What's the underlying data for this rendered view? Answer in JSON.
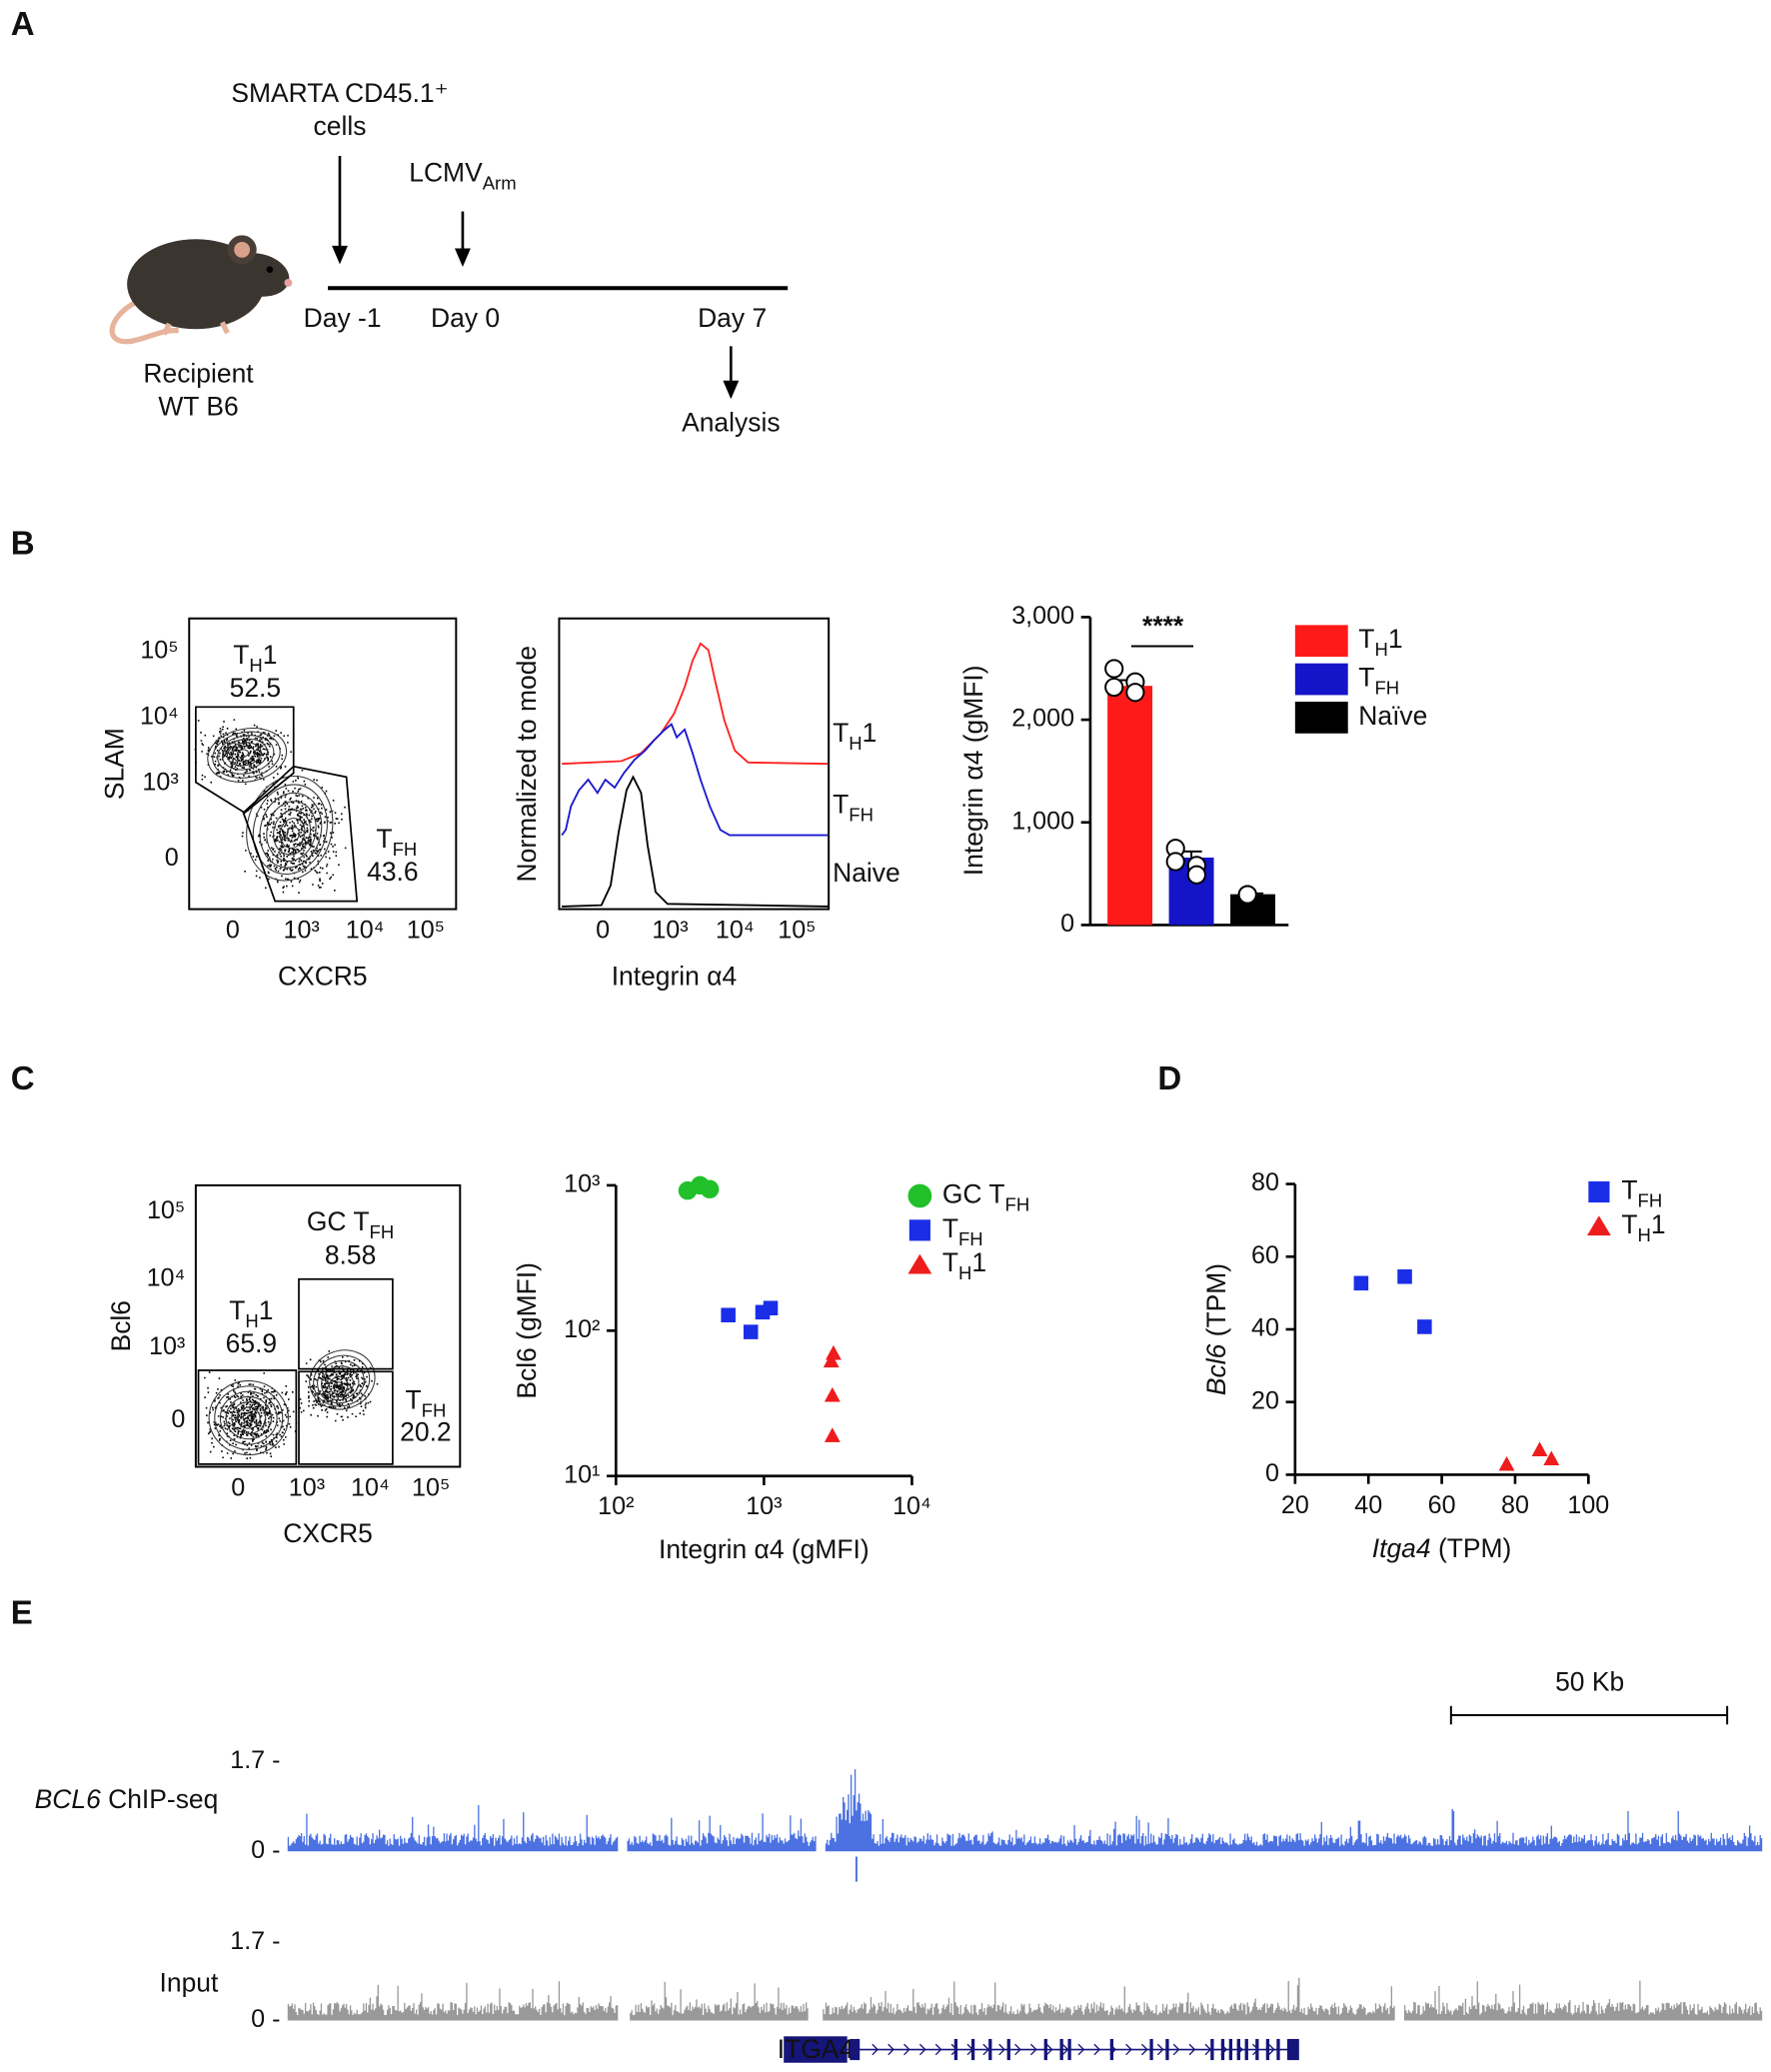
{
  "panels": {
    "a": "A",
    "b": "B",
    "c": "C",
    "d": "D",
    "e": "E"
  },
  "timeline": {
    "injection": [
      "SMARTA CD45.1⁺",
      "cells"
    ],
    "infection": {
      "t": "LCMV",
      "sub": "Arm"
    },
    "days": [
      "Day -1",
      "Day 0",
      "Day 7"
    ],
    "analysis": "Analysis",
    "recipient": [
      "Recipient",
      "WT B6"
    ]
  },
  "flow_b": {
    "ylabel": "SLAM",
    "xlabel": "CXCR5",
    "yticks": [
      "10⁵",
      "10⁴",
      "10³",
      "0"
    ],
    "xticks": [
      "0",
      "10³",
      "10⁴",
      "10⁵"
    ],
    "gates": [
      {
        "name": {
          "t": "T",
          "sub": "H",
          "after": "1"
        },
        "value": 52.5
      },
      {
        "name": {
          "t": "T",
          "sub": "FH"
        },
        "value": 43.6
      }
    ]
  },
  "histogram_b": {
    "ylabel": "Normalized to mode",
    "xlabel": "Integrin α4",
    "xticks": [
      "0",
      "10³",
      "10⁴",
      "10⁵"
    ],
    "labels": [
      {
        "t": "T",
        "sub": "H",
        "after": "1"
      },
      {
        "t": "T",
        "sub": "FH"
      },
      "Naive"
    ]
  },
  "flow_c": {
    "ylabel": "Bcl6",
    "xlabel": "CXCR5",
    "yticks": [
      "10⁵",
      "10⁴",
      "10³",
      "0"
    ],
    "xticks": [
      "0",
      "10³",
      "10⁴",
      "10⁵"
    ],
    "gates": [
      {
        "name": {
          "t": "GC T",
          "sub": "FH"
        },
        "value": 8.58
      },
      {
        "name": {
          "t": "T",
          "sub": "H",
          "after": "1"
        },
        "value": 65.9
      },
      {
        "name": {
          "t": "T",
          "sub": "FH"
        },
        "value": 20.2
      }
    ]
  },
  "chart_data": [
    {
      "type": "bar",
      "ylabel": "Integrin α4 (gMFI)",
      "ylim": [
        0,
        3000
      ],
      "yticks": [
        0,
        {
          "value": 1000,
          "label": "1,000"
        },
        {
          "value": 2000,
          "label": "2,000"
        },
        {
          "value": 3000,
          "label": "3,000"
        }
      ],
      "annotation": "****",
      "series": [
        {
          "name": {
            "t": "T",
            "sub": "H",
            "after": "1"
          },
          "color": "#ff1a1a",
          "values": [
            2330
          ],
          "errors": [
            55
          ],
          "points": [
            2498,
            2369,
            2266,
            2317
          ]
        },
        {
          "name": {
            "t": "T",
            "sub": "FH"
          },
          "color": "#1414c8",
          "values": [
            657
          ],
          "errors": [
            60
          ],
          "points": [
            747,
            580,
            489,
            618
          ]
        },
        {
          "name": "Naïve",
          "color": "#000000",
          "values": [
            300
          ],
          "errors": [
            8
          ],
          "points": [
            296,
            296
          ]
        }
      ]
    },
    {
      "type": "scatter",
      "log": true,
      "xlabel": "Integrin α4 (gMFI)",
      "ylabel": "Bcl6 (gMFI)",
      "xlim": [
        100,
        10000
      ],
      "ylim": [
        10,
        1000
      ],
      "xticks": [
        {
          "value": 100,
          "label": "10²"
        },
        {
          "value": 1000,
          "label": "10³"
        },
        {
          "value": 10000,
          "label": "10⁴"
        }
      ],
      "yticks": [
        {
          "value": 10,
          "label": "10¹"
        },
        {
          "value": 100,
          "label": "10²"
        },
        {
          "value": 1000,
          "label": "10³"
        }
      ],
      "series": [
        {
          "name": {
            "t": "GC T",
            "sub": "FH"
          },
          "color": "#22c02a",
          "marker": "circle",
          "x": [
            305,
            370,
            430
          ],
          "values": [
            920,
            1000,
            940
          ]
        },
        {
          "name": {
            "t": "T",
            "sub": "FH"
          },
          "color": "#1a2ee8",
          "marker": "square",
          "x": [
            574,
            815,
            979,
            1109
          ],
          "values": [
            128,
            98,
            134,
            143
          ]
        },
        {
          "name": {
            "t": "T",
            "sub": "H",
            "after": "1"
          },
          "color": "#ee1c1c",
          "marker": "triangle",
          "x": [
            2950,
            2850,
            2900,
            2900
          ],
          "values": [
            70,
            62,
            36,
            19
          ]
        }
      ]
    },
    {
      "type": "scatter",
      "log": false,
      "xlabel": {
        "italic": "Itga4",
        "after": " (TPM)"
      },
      "ylabel": {
        "italic": "Bcl6",
        "after": " (TPM)"
      },
      "xlim": [
        20,
        100
      ],
      "ylim": [
        0,
        80
      ],
      "xticks": [
        20,
        40,
        60,
        80,
        100
      ],
      "yticks": [
        0,
        20,
        40,
        60,
        80
      ],
      "series": [
        {
          "name": {
            "t": "T",
            "sub": "FH"
          },
          "color": "#1a2ee8",
          "marker": "square",
          "x": [
            38,
            49.9,
            55.3
          ],
          "values": [
            52.7,
            54.5,
            40.7
          ]
        },
        {
          "name": {
            "t": "T",
            "sub": "H",
            "after": "1"
          },
          "color": "#ee1c1c",
          "marker": "triangle",
          "x": [
            77.7,
            86.7,
            89.9
          ],
          "values": [
            2.9,
            6.9,
            4.4
          ]
        }
      ]
    }
  ],
  "tracks": {
    "scale": "50 Kb",
    "items": [
      {
        "name": {
          "italic": "BCL6",
          "after": " ChIP-seq"
        },
        "ticks": [
          "1.7 -",
          "0 -"
        ]
      },
      {
        "name": "Input",
        "ticks": [
          "1.7 -",
          "0 -"
        ]
      }
    ],
    "gene": "ITGA4"
  }
}
